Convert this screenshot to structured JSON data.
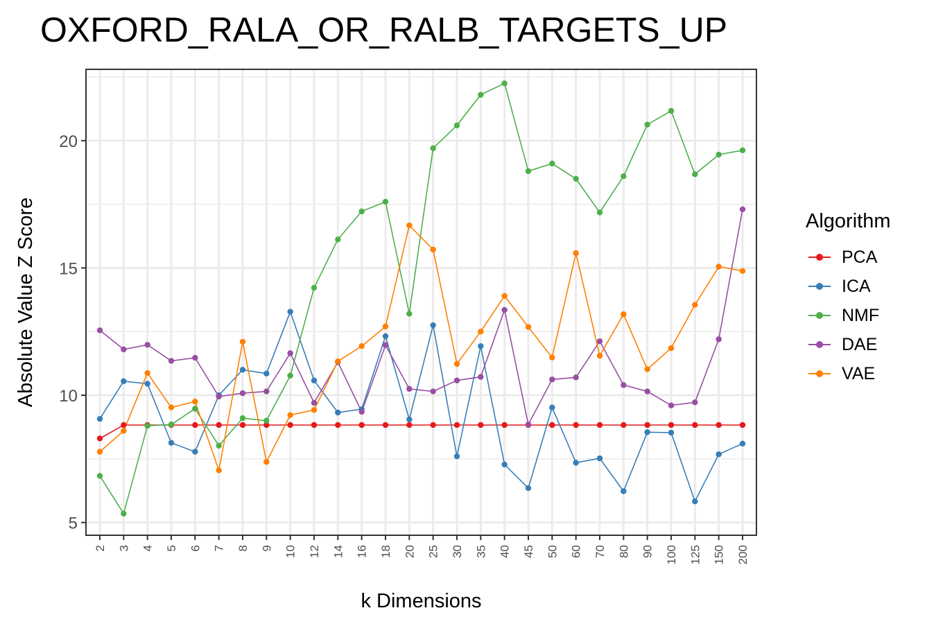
{
  "chart_data": {
    "type": "line",
    "title": "OXFORD_RALA_OR_RALB_TARGETS_UP",
    "xlabel": "k Dimensions",
    "ylabel": "Absolute Value Z Score",
    "categories": [
      "2",
      "3",
      "4",
      "5",
      "6",
      "7",
      "8",
      "9",
      "10",
      "12",
      "14",
      "16",
      "18",
      "20",
      "25",
      "30",
      "35",
      "40",
      "45",
      "50",
      "60",
      "70",
      "80",
      "90",
      "100",
      "125",
      "150",
      "200"
    ],
    "yticks": [
      5,
      10,
      15,
      20
    ],
    "ylim": [
      4.5,
      22.8
    ],
    "grid": true,
    "legend_title": "Algorithm",
    "legend_position": "right",
    "series": [
      {
        "name": "PCA",
        "color": "#e41a1c",
        "values": [
          8.3,
          8.83,
          8.83,
          8.83,
          8.83,
          8.83,
          8.83,
          8.83,
          8.83,
          8.83,
          8.83,
          8.83,
          8.83,
          8.83,
          8.83,
          8.83,
          8.83,
          8.83,
          8.83,
          8.83,
          8.83,
          8.83,
          8.83,
          8.83,
          8.83,
          8.83,
          8.83,
          8.83
        ]
      },
      {
        "name": "ICA",
        "color": "#377eb8",
        "values": [
          9.07,
          10.55,
          10.45,
          8.13,
          7.78,
          10.0,
          11.0,
          10.85,
          13.28,
          10.58,
          9.32,
          9.45,
          12.32,
          9.05,
          12.75,
          7.6,
          11.93,
          7.28,
          6.35,
          9.52,
          7.35,
          7.52,
          6.23,
          8.55,
          8.53,
          5.83,
          7.68,
          8.1
        ]
      },
      {
        "name": "NMF",
        "color": "#4daf4a",
        "values": [
          6.83,
          5.35,
          8.8,
          8.85,
          9.47,
          8.02,
          9.1,
          9.0,
          10.77,
          14.22,
          16.12,
          17.22,
          17.6,
          13.2,
          19.7,
          20.6,
          21.8,
          22.25,
          18.8,
          19.1,
          18.5,
          17.18,
          18.6,
          20.63,
          21.17,
          18.68,
          19.45,
          19.62
        ]
      },
      {
        "name": "DAE",
        "color": "#984ea3",
        "values": [
          12.55,
          11.8,
          11.98,
          11.35,
          11.47,
          9.95,
          10.08,
          10.15,
          11.65,
          9.7,
          11.3,
          9.35,
          11.97,
          10.25,
          10.15,
          10.58,
          10.72,
          13.35,
          8.85,
          10.62,
          10.7,
          12.12,
          10.4,
          10.15,
          9.6,
          9.72,
          12.2,
          17.3
        ]
      },
      {
        "name": "VAE",
        "color": "#ff7f00",
        "values": [
          7.78,
          8.6,
          10.87,
          9.52,
          9.75,
          7.05,
          12.1,
          7.38,
          9.22,
          9.42,
          11.33,
          11.93,
          12.7,
          16.67,
          15.72,
          11.23,
          12.5,
          13.9,
          12.68,
          11.48,
          15.58,
          11.55,
          13.18,
          11.02,
          11.85,
          13.55,
          15.05,
          14.88
        ]
      }
    ]
  }
}
